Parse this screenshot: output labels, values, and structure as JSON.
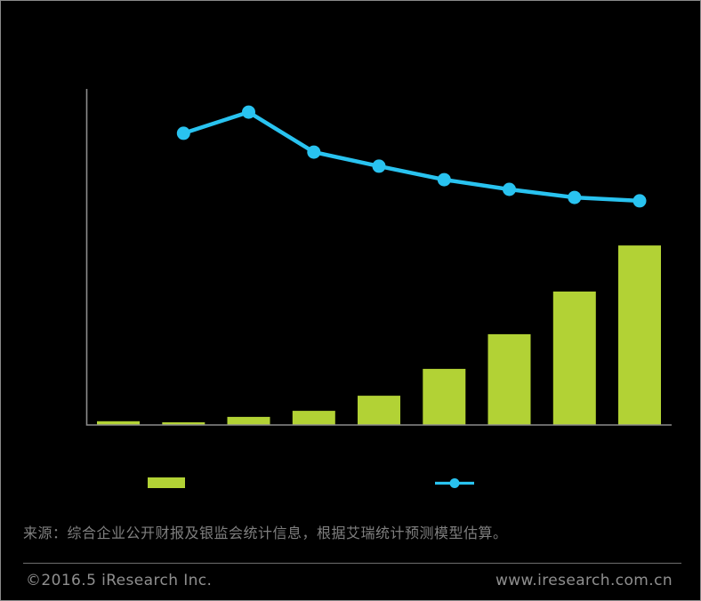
{
  "page": {
    "background": "#000000",
    "border_color": "#8a8a8a"
  },
  "chart_data": {
    "type": "bar",
    "combo_with_line": true,
    "title": "",
    "xlabel": "",
    "ylabel": "",
    "n_categories": 9,
    "category_tick_labels_visible": false,
    "data_labels_visible": false,
    "grid": false,
    "axis_color": "#8c8c8c",
    "bar_series": {
      "label_visible": false,
      "color": "#b2d235",
      "values_pct_of_plot_height": [
        1.1,
        0.8,
        2.4,
        4.2,
        8.7,
        16.7,
        27.0,
        39.7,
        53.4
      ]
    },
    "line_series": {
      "label_visible": false,
      "color": "#29c3f0",
      "category_indices": [
        2,
        3,
        4,
        5,
        6,
        7,
        8,
        9
      ],
      "values_pct_of_plot_height": [
        86.8,
        93.1,
        81.2,
        77.0,
        73.0,
        70.1,
        67.7,
        66.7
      ]
    },
    "legend": {
      "position": "bottom",
      "labels_visible": false,
      "bar_swatch_color": "#b2d235",
      "line_marker_color": "#29c3f0"
    }
  },
  "source_note": "来源：综合企业公开财报及银监会统计信息，根据艾瑞统计预测模型估算。",
  "footer": {
    "copyright": "©2016.5 iResearch Inc.",
    "website": "www.iresearch.com.cn",
    "text_color": "#8f8f8f",
    "divider_color": "#6e6e6e"
  }
}
